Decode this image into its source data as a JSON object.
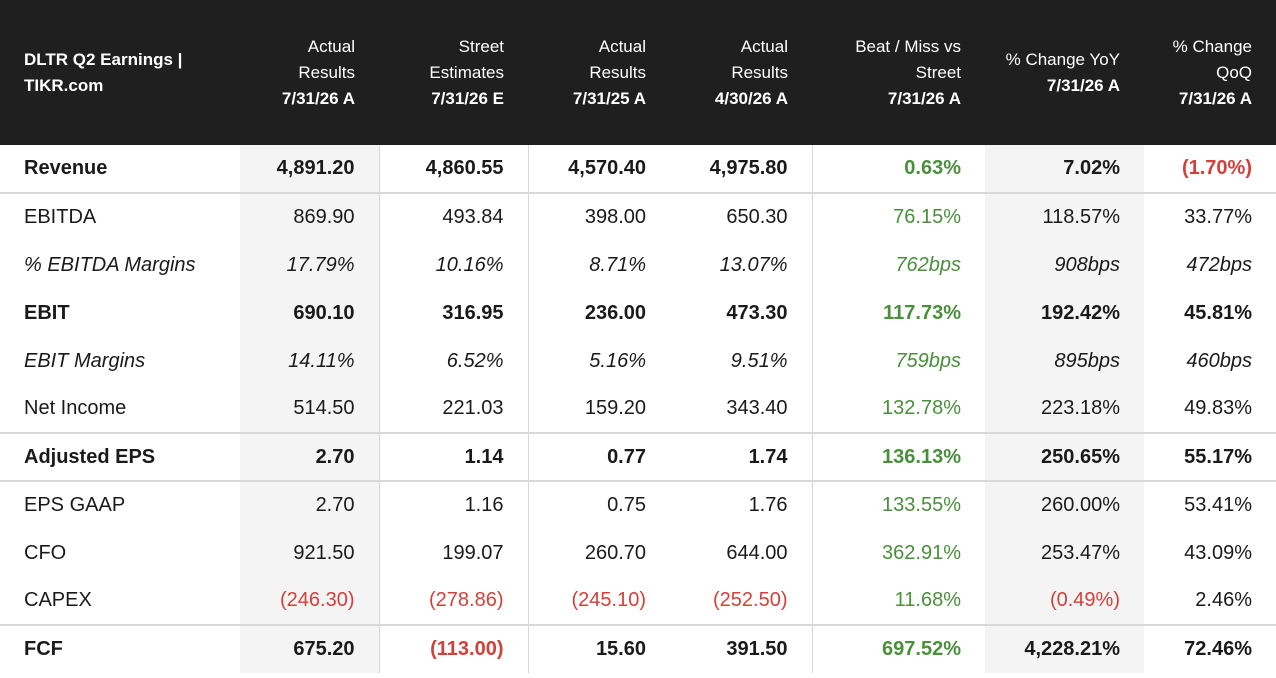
{
  "header": {
    "title_line1": "DLTR Q2 Earnings |",
    "title_line2": "TIKR.com",
    "columns": [
      {
        "label": "Actual Results",
        "date": "7/31/26 A"
      },
      {
        "label": "Street Estimates",
        "date": "7/31/26 E"
      },
      {
        "label": "Actual Results",
        "date": "7/31/25 A"
      },
      {
        "label": "Actual Results",
        "date": "4/30/26 A"
      },
      {
        "label": "Beat / Miss vs Street",
        "date": "7/31/26 A"
      },
      {
        "label": "% Change YoY",
        "date": "7/31/26 A"
      },
      {
        "label": "% Change QoQ",
        "date": "7/31/26 A"
      }
    ]
  },
  "rows": [
    {
      "label": "Revenue",
      "style": "bold",
      "values": [
        "4,891.20",
        "4,860.55",
        "4,570.40",
        "4,975.80",
        "0.63%",
        "7.02%",
        "(1.70%)"
      ]
    },
    {
      "label": "EBITDA",
      "style": "normal",
      "values": [
        "869.90",
        "493.84",
        "398.00",
        "650.30",
        "76.15%",
        "118.57%",
        "33.77%"
      ]
    },
    {
      "label": "% EBITDA Margins",
      "style": "italic",
      "values": [
        "17.79%",
        "10.16%",
        "8.71%",
        "13.07%",
        "762bps",
        "908bps",
        "472bps"
      ]
    },
    {
      "label": "EBIT",
      "style": "bold",
      "values": [
        "690.10",
        "316.95",
        "236.00",
        "473.30",
        "117.73%",
        "192.42%",
        "45.81%"
      ]
    },
    {
      "label": "EBIT Margins",
      "style": "italic",
      "values": [
        "14.11%",
        "6.52%",
        "5.16%",
        "9.51%",
        "759bps",
        "895bps",
        "460bps"
      ]
    },
    {
      "label": "Net Income",
      "style": "normal",
      "values": [
        "514.50",
        "221.03",
        "159.20",
        "343.40",
        "132.78%",
        "223.18%",
        "49.83%"
      ]
    },
    {
      "label": "Adjusted EPS",
      "style": "bold",
      "values": [
        "2.70",
        "1.14",
        "0.77",
        "1.74",
        "136.13%",
        "250.65%",
        "55.17%"
      ]
    },
    {
      "label": "EPS GAAP",
      "style": "normal",
      "values": [
        "2.70",
        "1.16",
        "0.75",
        "1.76",
        "133.55%",
        "260.00%",
        "53.41%"
      ]
    },
    {
      "label": "CFO",
      "style": "normal",
      "values": [
        "921.50",
        "199.07",
        "260.70",
        "644.00",
        "362.91%",
        "253.47%",
        "43.09%"
      ]
    },
    {
      "label": "CAPEX",
      "style": "normal",
      "values": [
        "(246.30)",
        "(278.86)",
        "(245.10)",
        "(252.50)",
        "11.68%",
        "(0.49%)",
        "2.46%"
      ]
    },
    {
      "label": "FCF",
      "style": "bold",
      "values": [
        "675.20",
        "(113.00)",
        "15.60",
        "391.50",
        "697.52%",
        "4,228.21%",
        "72.46%"
      ]
    }
  ],
  "colors": {
    "header_bg": "#1f1f1f",
    "positive": "#4a8f3c",
    "negative": "#d2403a",
    "shade": "#f4f4f4"
  }
}
